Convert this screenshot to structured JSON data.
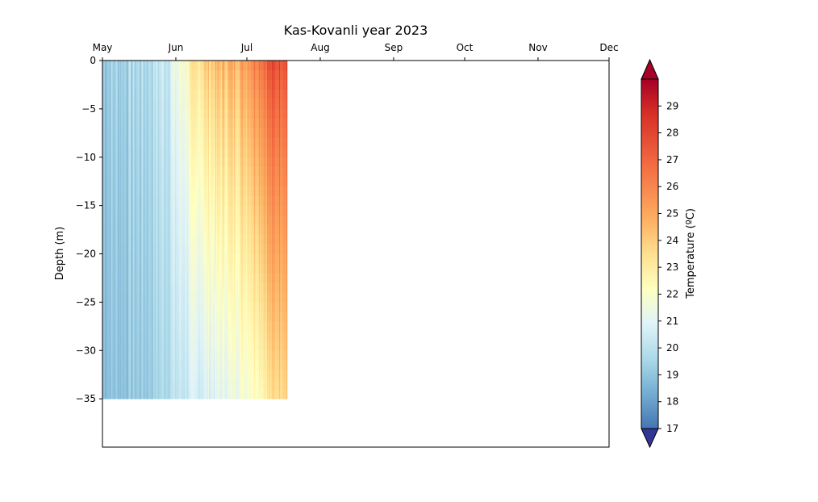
{
  "chart_data": {
    "type": "heatmap",
    "title": "Kas-Kovanli year 2023",
    "xlabel": "",
    "ylabel": "Depth (m)",
    "x_axis_position": "top",
    "x_ticks": [
      "May",
      "Jun",
      "Jul",
      "Aug",
      "Sep",
      "Oct",
      "Nov",
      "Dec"
    ],
    "x_range": [
      "2023-05-01",
      "2023-12-01"
    ],
    "ylim": [
      -40,
      0
    ],
    "y_ticks": [
      0,
      -5,
      -10,
      -15,
      -20,
      -25,
      -30,
      -35
    ],
    "depth_range": [
      -35,
      0
    ],
    "data_period": [
      "2023-05-01",
      "2023-07-17"
    ],
    "colormap": "RdYlBu_r",
    "colorbar": {
      "label": "Temperature (ºC)",
      "vmin": 17,
      "vmax": 30,
      "ticks": [
        17,
        18,
        19,
        20,
        21,
        22,
        23,
        24,
        25,
        26,
        27,
        28,
        29
      ],
      "extend": "both"
    },
    "temperature_profile": [
      {
        "date": "2023-05-01",
        "surface": 19.3,
        "bottom": 18.9
      },
      {
        "date": "2023-05-10",
        "surface": 19.5,
        "bottom": 19.0
      },
      {
        "date": "2023-05-20",
        "surface": 19.8,
        "bottom": 19.2
      },
      {
        "date": "2023-05-28",
        "surface": 20.5,
        "bottom": 19.8
      },
      {
        "date": "2023-06-05",
        "surface": 22.2,
        "bottom": 20.3
      },
      {
        "date": "2023-06-12",
        "surface": 23.8,
        "bottom": 20.6
      },
      {
        "date": "2023-06-20",
        "surface": 24.5,
        "bottom": 21.0
      },
      {
        "date": "2023-06-28",
        "surface": 25.0,
        "bottom": 21.6
      },
      {
        "date": "2023-07-05",
        "surface": 26.5,
        "bottom": 22.3
      },
      {
        "date": "2023-07-10",
        "surface": 27.5,
        "bottom": 23.2
      },
      {
        "date": "2023-07-17",
        "surface": 28.0,
        "bottom": 24.0
      }
    ]
  }
}
